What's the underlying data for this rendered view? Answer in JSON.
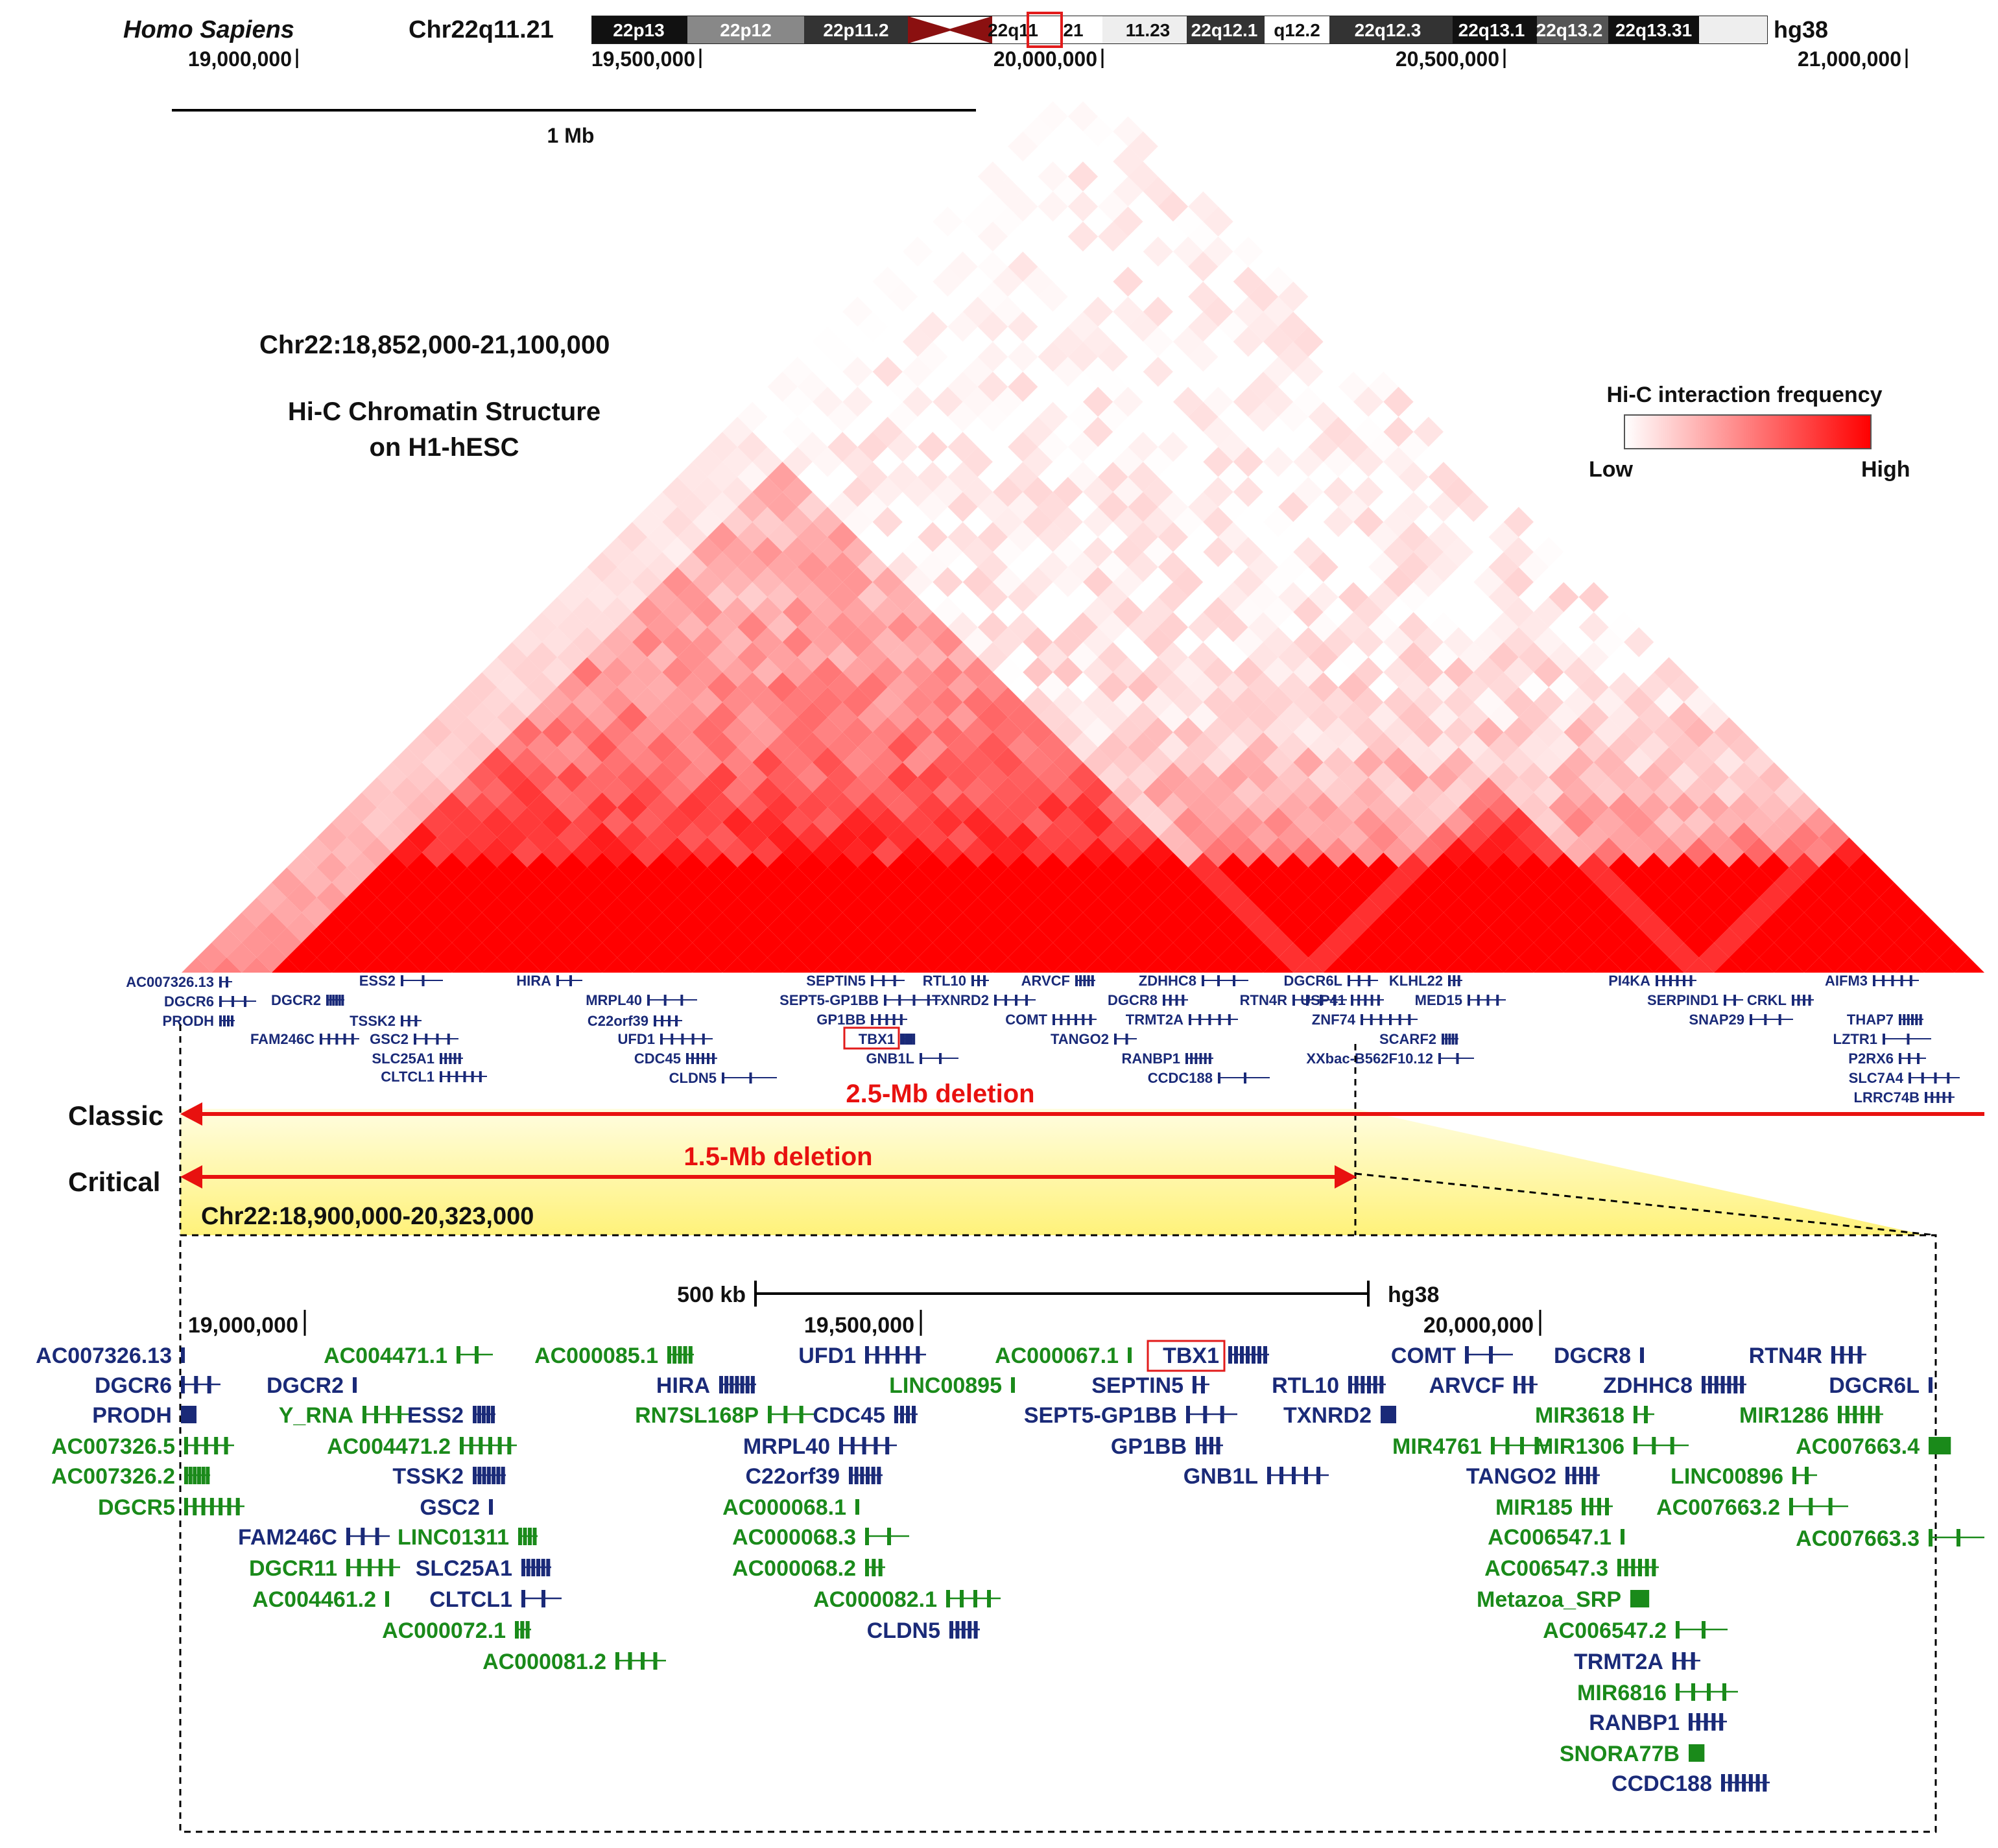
{
  "header": {
    "species": "Homo Sapiens",
    "band": "Chr22q11.21",
    "assembly": "hg38",
    "bands": [
      "22p13",
      "22p12",
      "22p11.2",
      "22q11",
      "21",
      "11.23",
      "22q12.1",
      "q12.2",
      "22q12.3",
      "22q13.1",
      "22q13.2",
      "22q13.31"
    ],
    "top_ticks": [
      "19,000,000",
      "19,500,000",
      "20,000,000",
      "20,500,000",
      "21,000,000"
    ]
  },
  "scale_top": {
    "label": "1 Mb"
  },
  "hic": {
    "region": "Chr22:18,852,000-21,100,000",
    "title_line1": "Hi-C Chromatin Structure",
    "title_line2": "on H1-hESC"
  },
  "legend": {
    "title": "Hi-C interaction frequency",
    "low": "Low",
    "high": "High",
    "low_color": "#ffffff",
    "high_color": "#ff0000"
  },
  "genes_top": [
    {
      "name": "AC007326.13",
      "color": "navy"
    },
    {
      "name": "DGCR6",
      "color": "navy"
    },
    {
      "name": "PRODH",
      "color": "navy"
    },
    {
      "name": "FAM246C",
      "color": "navy"
    },
    {
      "name": "DGCR2",
      "color": "navy"
    },
    {
      "name": "ESS2",
      "color": "navy"
    },
    {
      "name": "TSSK2",
      "color": "navy"
    },
    {
      "name": "GSC2",
      "color": "navy"
    },
    {
      "name": "SLC25A1",
      "color": "navy"
    },
    {
      "name": "CLTCL1",
      "color": "navy"
    },
    {
      "name": "HIRA",
      "color": "navy"
    },
    {
      "name": "MRPL40",
      "color": "navy"
    },
    {
      "name": "C22orf39",
      "color": "navy"
    },
    {
      "name": "UFD1",
      "color": "navy"
    },
    {
      "name": "CDC45",
      "color": "navy"
    },
    {
      "name": "CLDN5",
      "color": "navy"
    },
    {
      "name": "SEPTIN5",
      "color": "navy"
    },
    {
      "name": "SEPT5-GP1BB",
      "color": "navy"
    },
    {
      "name": "GP1BB",
      "color": "navy"
    },
    {
      "name": "TBX1",
      "color": "navy"
    },
    {
      "name": "GNB1L",
      "color": "navy"
    },
    {
      "name": "RTL10",
      "color": "navy"
    },
    {
      "name": "TXNRD2",
      "color": "navy"
    },
    {
      "name": "ARVCF",
      "color": "navy"
    },
    {
      "name": "COMT",
      "color": "navy"
    },
    {
      "name": "TANGO2",
      "color": "navy"
    },
    {
      "name": "ZDHHC8",
      "color": "navy"
    },
    {
      "name": "DGCR8",
      "color": "navy"
    },
    {
      "name": "TRMT2A",
      "color": "navy"
    },
    {
      "name": "RANBP1",
      "color": "navy"
    },
    {
      "name": "CCDC188",
      "color": "navy"
    },
    {
      "name": "DGCR6L",
      "color": "navy"
    },
    {
      "name": "RTN4R",
      "color": "navy"
    },
    {
      "name": "USP41",
      "color": "navy"
    },
    {
      "name": "ZNF74",
      "color": "navy"
    },
    {
      "name": "XXbac-B562F10.12",
      "color": "navy"
    },
    {
      "name": "KLHL22",
      "color": "navy"
    },
    {
      "name": "MED15",
      "color": "navy"
    },
    {
      "name": "SCARF2",
      "color": "navy"
    },
    {
      "name": "PI4KA",
      "color": "navy"
    },
    {
      "name": "SERPIND1",
      "color": "navy"
    },
    {
      "name": "SNAP29",
      "color": "navy"
    },
    {
      "name": "CRKL",
      "color": "navy"
    },
    {
      "name": "AIFM3",
      "color": "navy"
    },
    {
      "name": "THAP7",
      "color": "navy"
    },
    {
      "name": "LZTR1",
      "color": "navy"
    },
    {
      "name": "P2RX6",
      "color": "navy"
    },
    {
      "name": "SLC7A4",
      "color": "navy"
    },
    {
      "name": "LRRC74B",
      "color": "navy"
    }
  ],
  "deletions": {
    "classic_label": "Classic",
    "classic_text": "2.5-Mb deletion",
    "critical_label": "Critical",
    "critical_text": "1.5-Mb deletion",
    "critical_region": "Chr22:18,900,000-20,323,000"
  },
  "zoom": {
    "scale_label": "500 kb",
    "assembly": "hg38",
    "ticks": [
      "19,000,000",
      "19,500,000",
      "20,000,000"
    ],
    "genes": [
      {
        "name": "AC007326.13",
        "color": "navy"
      },
      {
        "name": "DGCR6",
        "color": "navy"
      },
      {
        "name": "PRODH",
        "color": "navy"
      },
      {
        "name": "AC007326.5",
        "color": "green"
      },
      {
        "name": "AC007326.2",
        "color": "green"
      },
      {
        "name": "DGCR5",
        "color": "green"
      },
      {
        "name": "AC004471.1",
        "color": "green"
      },
      {
        "name": "DGCR2",
        "color": "navy"
      },
      {
        "name": "Y_RNA",
        "color": "green"
      },
      {
        "name": "ESS2",
        "color": "navy"
      },
      {
        "name": "AC004471.2",
        "color": "green"
      },
      {
        "name": "TSSK2",
        "color": "navy"
      },
      {
        "name": "GSC2",
        "color": "navy"
      },
      {
        "name": "FAM246C",
        "color": "navy"
      },
      {
        "name": "LINC01311",
        "color": "green"
      },
      {
        "name": "DGCR11",
        "color": "green"
      },
      {
        "name": "SLC25A1",
        "color": "navy"
      },
      {
        "name": "AC004461.2",
        "color": "green"
      },
      {
        "name": "CLTCL1",
        "color": "navy"
      },
      {
        "name": "AC000072.1",
        "color": "green"
      },
      {
        "name": "AC000081.2",
        "color": "green"
      },
      {
        "name": "AC000085.1",
        "color": "green"
      },
      {
        "name": "UFD1",
        "color": "navy"
      },
      {
        "name": "HIRA",
        "color": "navy"
      },
      {
        "name": "LINC00895",
        "color": "green"
      },
      {
        "name": "RN7SL168P",
        "color": "green"
      },
      {
        "name": "CDC45",
        "color": "navy"
      },
      {
        "name": "MRPL40",
        "color": "navy"
      },
      {
        "name": "C22orf39",
        "color": "navy"
      },
      {
        "name": "AC000068.1",
        "color": "green"
      },
      {
        "name": "AC000068.3",
        "color": "green"
      },
      {
        "name": "AC000068.2",
        "color": "green"
      },
      {
        "name": "AC000082.1",
        "color": "green"
      },
      {
        "name": "CLDN5",
        "color": "navy"
      },
      {
        "name": "AC000067.1",
        "color": "green"
      },
      {
        "name": "TBX1",
        "color": "navy"
      },
      {
        "name": "SEPTIN5",
        "color": "navy"
      },
      {
        "name": "SEPT5-GP1BB",
        "color": "navy"
      },
      {
        "name": "GP1BB",
        "color": "navy"
      },
      {
        "name": "GNB1L",
        "color": "navy"
      },
      {
        "name": "RTL10",
        "color": "navy"
      },
      {
        "name": "TXNRD2",
        "color": "navy"
      },
      {
        "name": "COMT",
        "color": "navy"
      },
      {
        "name": "ARVCF",
        "color": "navy"
      },
      {
        "name": "MIR4761",
        "color": "green"
      },
      {
        "name": "TANGO2",
        "color": "navy"
      },
      {
        "name": "DGCR8",
        "color": "navy"
      },
      {
        "name": "ZDHHC8",
        "color": "navy"
      },
      {
        "name": "MIR3618",
        "color": "green"
      },
      {
        "name": "MIR1306",
        "color": "green"
      },
      {
        "name": "MIR185",
        "color": "green"
      },
      {
        "name": "AC006547.1",
        "color": "green"
      },
      {
        "name": "AC006547.3",
        "color": "green"
      },
      {
        "name": "Metazoa_SRP",
        "color": "green"
      },
      {
        "name": "AC006547.2",
        "color": "green"
      },
      {
        "name": "TRMT2A",
        "color": "navy"
      },
      {
        "name": "MIR6816",
        "color": "green"
      },
      {
        "name": "RANBP1",
        "color": "navy"
      },
      {
        "name": "SNORA77B",
        "color": "green"
      },
      {
        "name": "CCDC188",
        "color": "navy"
      },
      {
        "name": "LINC00896",
        "color": "green"
      },
      {
        "name": "AC007663.2",
        "color": "green"
      },
      {
        "name": "RTN4R",
        "color": "navy"
      },
      {
        "name": "DGCR6L",
        "color": "navy"
      },
      {
        "name": "MIR1286",
        "color": "green"
      },
      {
        "name": "AC007663.4",
        "color": "green"
      },
      {
        "name": "AC007663.3",
        "color": "green"
      }
    ]
  }
}
